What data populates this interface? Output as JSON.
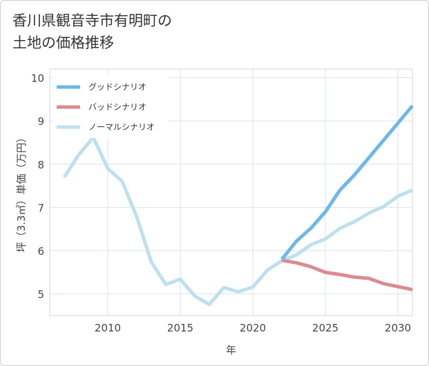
{
  "header": {
    "title_line1": "香川県観音寺市有明町の",
    "title_line2": "土地の価格推移"
  },
  "chart_data": {
    "type": "line",
    "xlabel": "年",
    "ylabel": "坪（3.3㎡）単価（万円）",
    "xlim": [
      2006,
      2031
    ],
    "ylim": [
      4.5,
      10.2
    ],
    "x_ticks": [
      2010,
      2015,
      2020,
      2025,
      2030
    ],
    "y_ticks": [
      5,
      6,
      7,
      8,
      9,
      10
    ],
    "grid": true,
    "legend_position": "top-left",
    "series": [
      {
        "name": "グッドシナリオ",
        "color": "#6cb8ea",
        "x": [
          2022,
          2023,
          2024,
          2025,
          2026,
          2027,
          2028,
          2029,
          2030,
          2031
        ],
        "values": [
          5.8,
          6.22,
          6.52,
          6.9,
          7.4,
          7.75,
          8.15,
          8.55,
          8.95,
          9.35
        ]
      },
      {
        "name": "バッドシナリオ",
        "color": "#dc8a90",
        "x": [
          2022,
          2023,
          2024,
          2025,
          2026,
          2027,
          2028,
          2029,
          2030,
          2031
        ],
        "values": [
          5.78,
          5.72,
          5.63,
          5.5,
          5.45,
          5.39,
          5.36,
          5.24,
          5.17,
          5.1
        ]
      },
      {
        "name": "ノーマルシナリオ",
        "color": "#bde0ee",
        "x": [
          2007,
          2008,
          2009,
          2010,
          2011,
          2012,
          2013,
          2014,
          2015,
          2016,
          2017,
          2018,
          2019,
          2020,
          2021,
          2022,
          2023,
          2024,
          2025,
          2026,
          2027,
          2028,
          2029,
          2030,
          2031
        ],
        "values": [
          7.7,
          8.22,
          8.62,
          7.9,
          7.6,
          6.78,
          5.74,
          5.22,
          5.34,
          4.95,
          4.76,
          5.15,
          5.05,
          5.16,
          5.55,
          5.77,
          5.9,
          6.14,
          6.27,
          6.52,
          6.67,
          6.87,
          7.02,
          7.26,
          7.4
        ]
      }
    ]
  }
}
